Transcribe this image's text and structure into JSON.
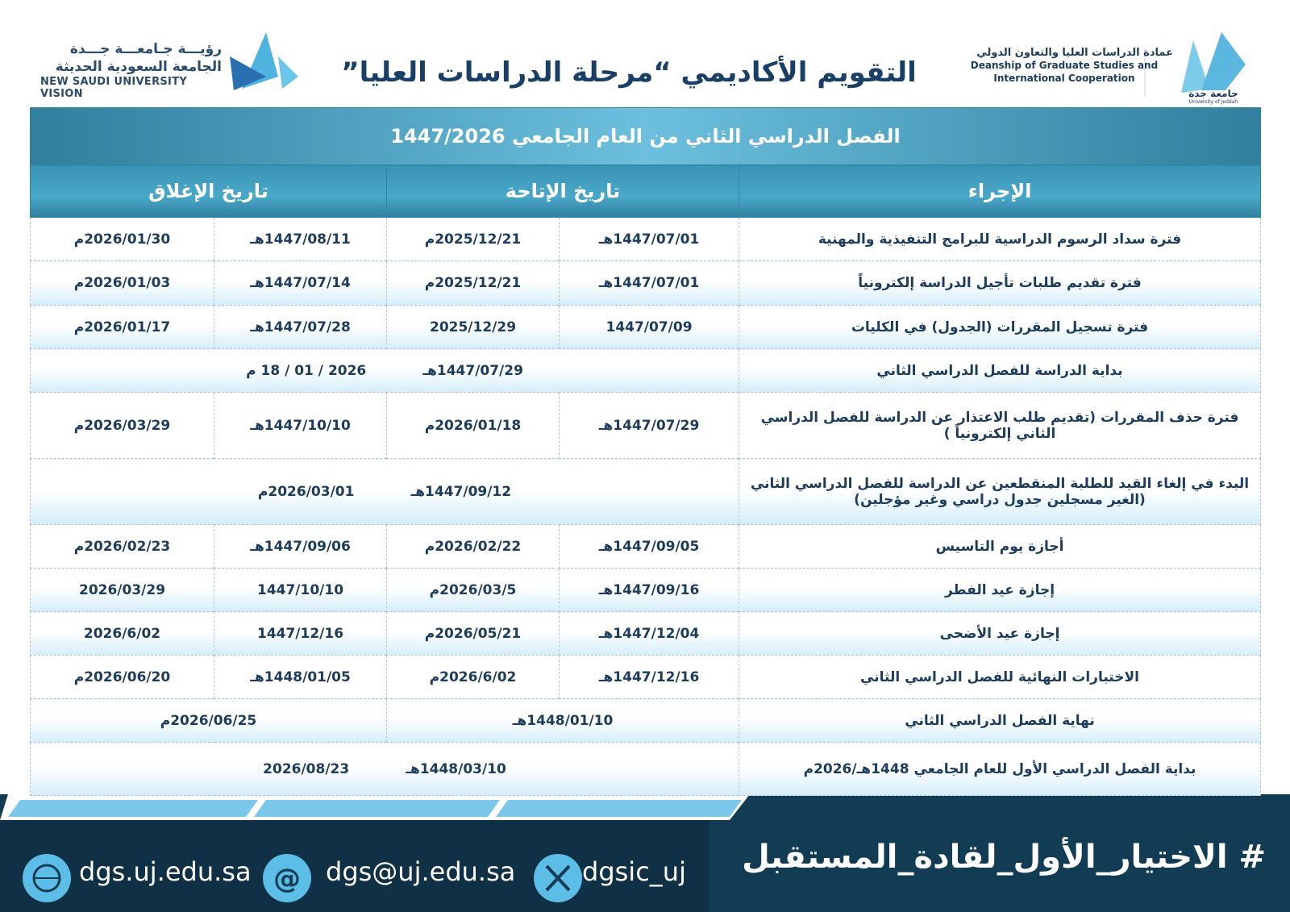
{
  "header": {
    "title": "التقويم الأكاديمي “مرحلة الدراسات العليا”",
    "vision_ar": "رؤيـــة جـامعـــة جـــدة",
    "vision_ar2": "الجامعة السعودية الحديثة",
    "vision_en": "NEW SAUDI UNIVERSITY VISION",
    "deanship_ar": "عمادة الدراسات العليا والتعاون الدولي",
    "deanship_en1": "Deanship of Graduate Studies and",
    "deanship_en2": "International Cooperation",
    "university_ar": "جامعة جدة",
    "university_en": "University of Jeddah"
  },
  "table": {
    "caption": "الفصل الدراسي الثاني من العام الجامعي 1447/2026",
    "headers": [
      "الإجراء",
      "تاريخ الإتاحة",
      "تاريخ الإغلاق"
    ],
    "rows": [
      {
        "action": "فترة سداد الرسوم الدراسية للبرامج التنفيذية والمهنية",
        "dates": [
          "1447/07/01هـ",
          "2025/12/21م",
          "1447/08/11هـ",
          "2026/01/30م"
        ]
      },
      {
        "action": "فترة تقديم طلبات تأجيل الدراسة إلكترونياً",
        "dates": [
          "1447/07/01هـ",
          "2025/12/21م",
          "1447/07/14هـ",
          "2026/01/03م"
        ]
      },
      {
        "action": "فترة تسجيل المقررات (الجدول) في الكليات",
        "dates": [
          "1447/07/09",
          "2025/12/29",
          "1447/07/28هـ",
          "2026/01/17م"
        ]
      },
      {
        "action": "بداية الدراسة للفصل الدراسي الثاني",
        "dates": [
          "1447/07/29هـ",
          "2026 / 01 / 18 م"
        ]
      },
      {
        "action": "فترة حذف المقررات (تقديم طلب الاعتذار عن الدراسة للفصل الدراسي الثاني إلكترونياً )",
        "dates": [
          "1447/07/29هـ",
          "2026/01/18م",
          "1447/10/10هـ",
          "2026/03/29م"
        ]
      },
      {
        "action": "البدء في إلغاء القيد للطلبة المنقطعين عن الدراسة للفصل الدراسي الثاني (الغير مسجلين جدول دراسي وغير مؤجلين)",
        "dates": [
          "1447/09/12هـ",
          "2026/03/01م"
        ]
      },
      {
        "action": "أجازة يوم التاسيس",
        "dates": [
          "1447/09/05هـ",
          "2026/02/22م",
          "1447/09/06هـ",
          "2026/02/23م"
        ]
      },
      {
        "action": "إجازة عيد الفطر",
        "dates": [
          "1447/09/16هـ",
          "2026/03/5م",
          "1447/10/10",
          "2026/03/29"
        ]
      },
      {
        "action": "إجازة عيد الأضحى",
        "dates": [
          "1447/12/04هـ",
          "2026/05/21م",
          "1447/12/16",
          "2026/6/02"
        ]
      },
      {
        "action": "الاختبارات النهائية للفصل الدراسي الثاني",
        "dates": [
          "1447/12/16هـ",
          "2026/6/02م",
          "1448/01/05هـ",
          "2026/06/20م"
        ]
      },
      {
        "action": "نهاية الفصل الدراسي الثاني",
        "dates": [
          "1448/01/10هـ",
          "2026/06/25م"
        ]
      },
      {
        "action": "بداية الفصل الدراسي الأول للعام الجامعي 1448هـ/2026م",
        "dates": [
          "1448/03/10هـ",
          "2026/08/23"
        ]
      }
    ]
  },
  "footer": {
    "hashtag": "# الاختيار_الأول_لقادة_المستقبل",
    "website": "dgs.uj.edu.sa",
    "email": "dgs@uj.edu.sa",
    "social": "dgsic_uj"
  }
}
